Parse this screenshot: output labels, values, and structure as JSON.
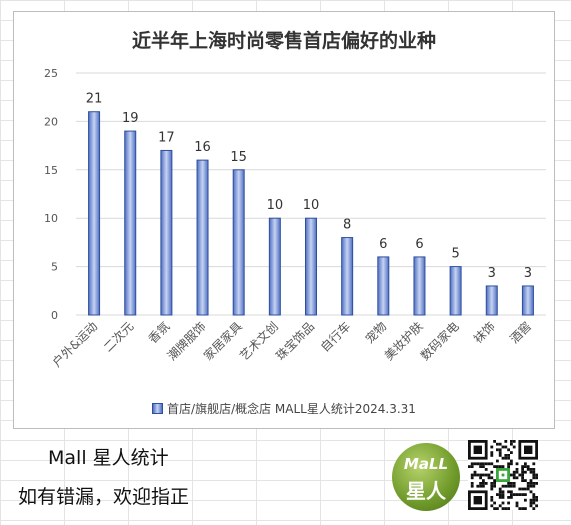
{
  "chart_data": {
    "type": "bar",
    "title": "近半年上海时尚零售首店偏好的业种",
    "categories": [
      "户外&运动",
      "二次元",
      "香氛",
      "潮牌服饰",
      "家居家具",
      "艺术文创",
      "珠宝饰品",
      "自行车",
      "宠物",
      "美妆护肤",
      "数码家电",
      "袜饰",
      "酒窖"
    ],
    "series": [
      {
        "name": "首店/旗舰店/概念店 MALL星人统计2024.3.31",
        "values": [
          21,
          19,
          17,
          16,
          15,
          10,
          10,
          8,
          6,
          6,
          5,
          3,
          3
        ]
      }
    ],
    "ylim": [
      0,
      25
    ],
    "yticks": [
      0,
      5,
      10,
      15,
      20,
      25
    ],
    "grid": true,
    "data_labels": true,
    "legend": "bottom",
    "colors": {
      "bar_edge": "#2f4f9e",
      "bar_center": "#c6d3f2",
      "bar_side": "#4f6fc2",
      "grid": "#d9d9d9"
    }
  },
  "footer": {
    "brand": "Mall 星人统计",
    "note": "如有错漏，欢迎指正"
  },
  "logo": {
    "text_top": "MaLL",
    "text_bottom": "星人"
  },
  "icons": {
    "qr": "qr-code-icon",
    "logo": "mall-xingren-logo"
  }
}
